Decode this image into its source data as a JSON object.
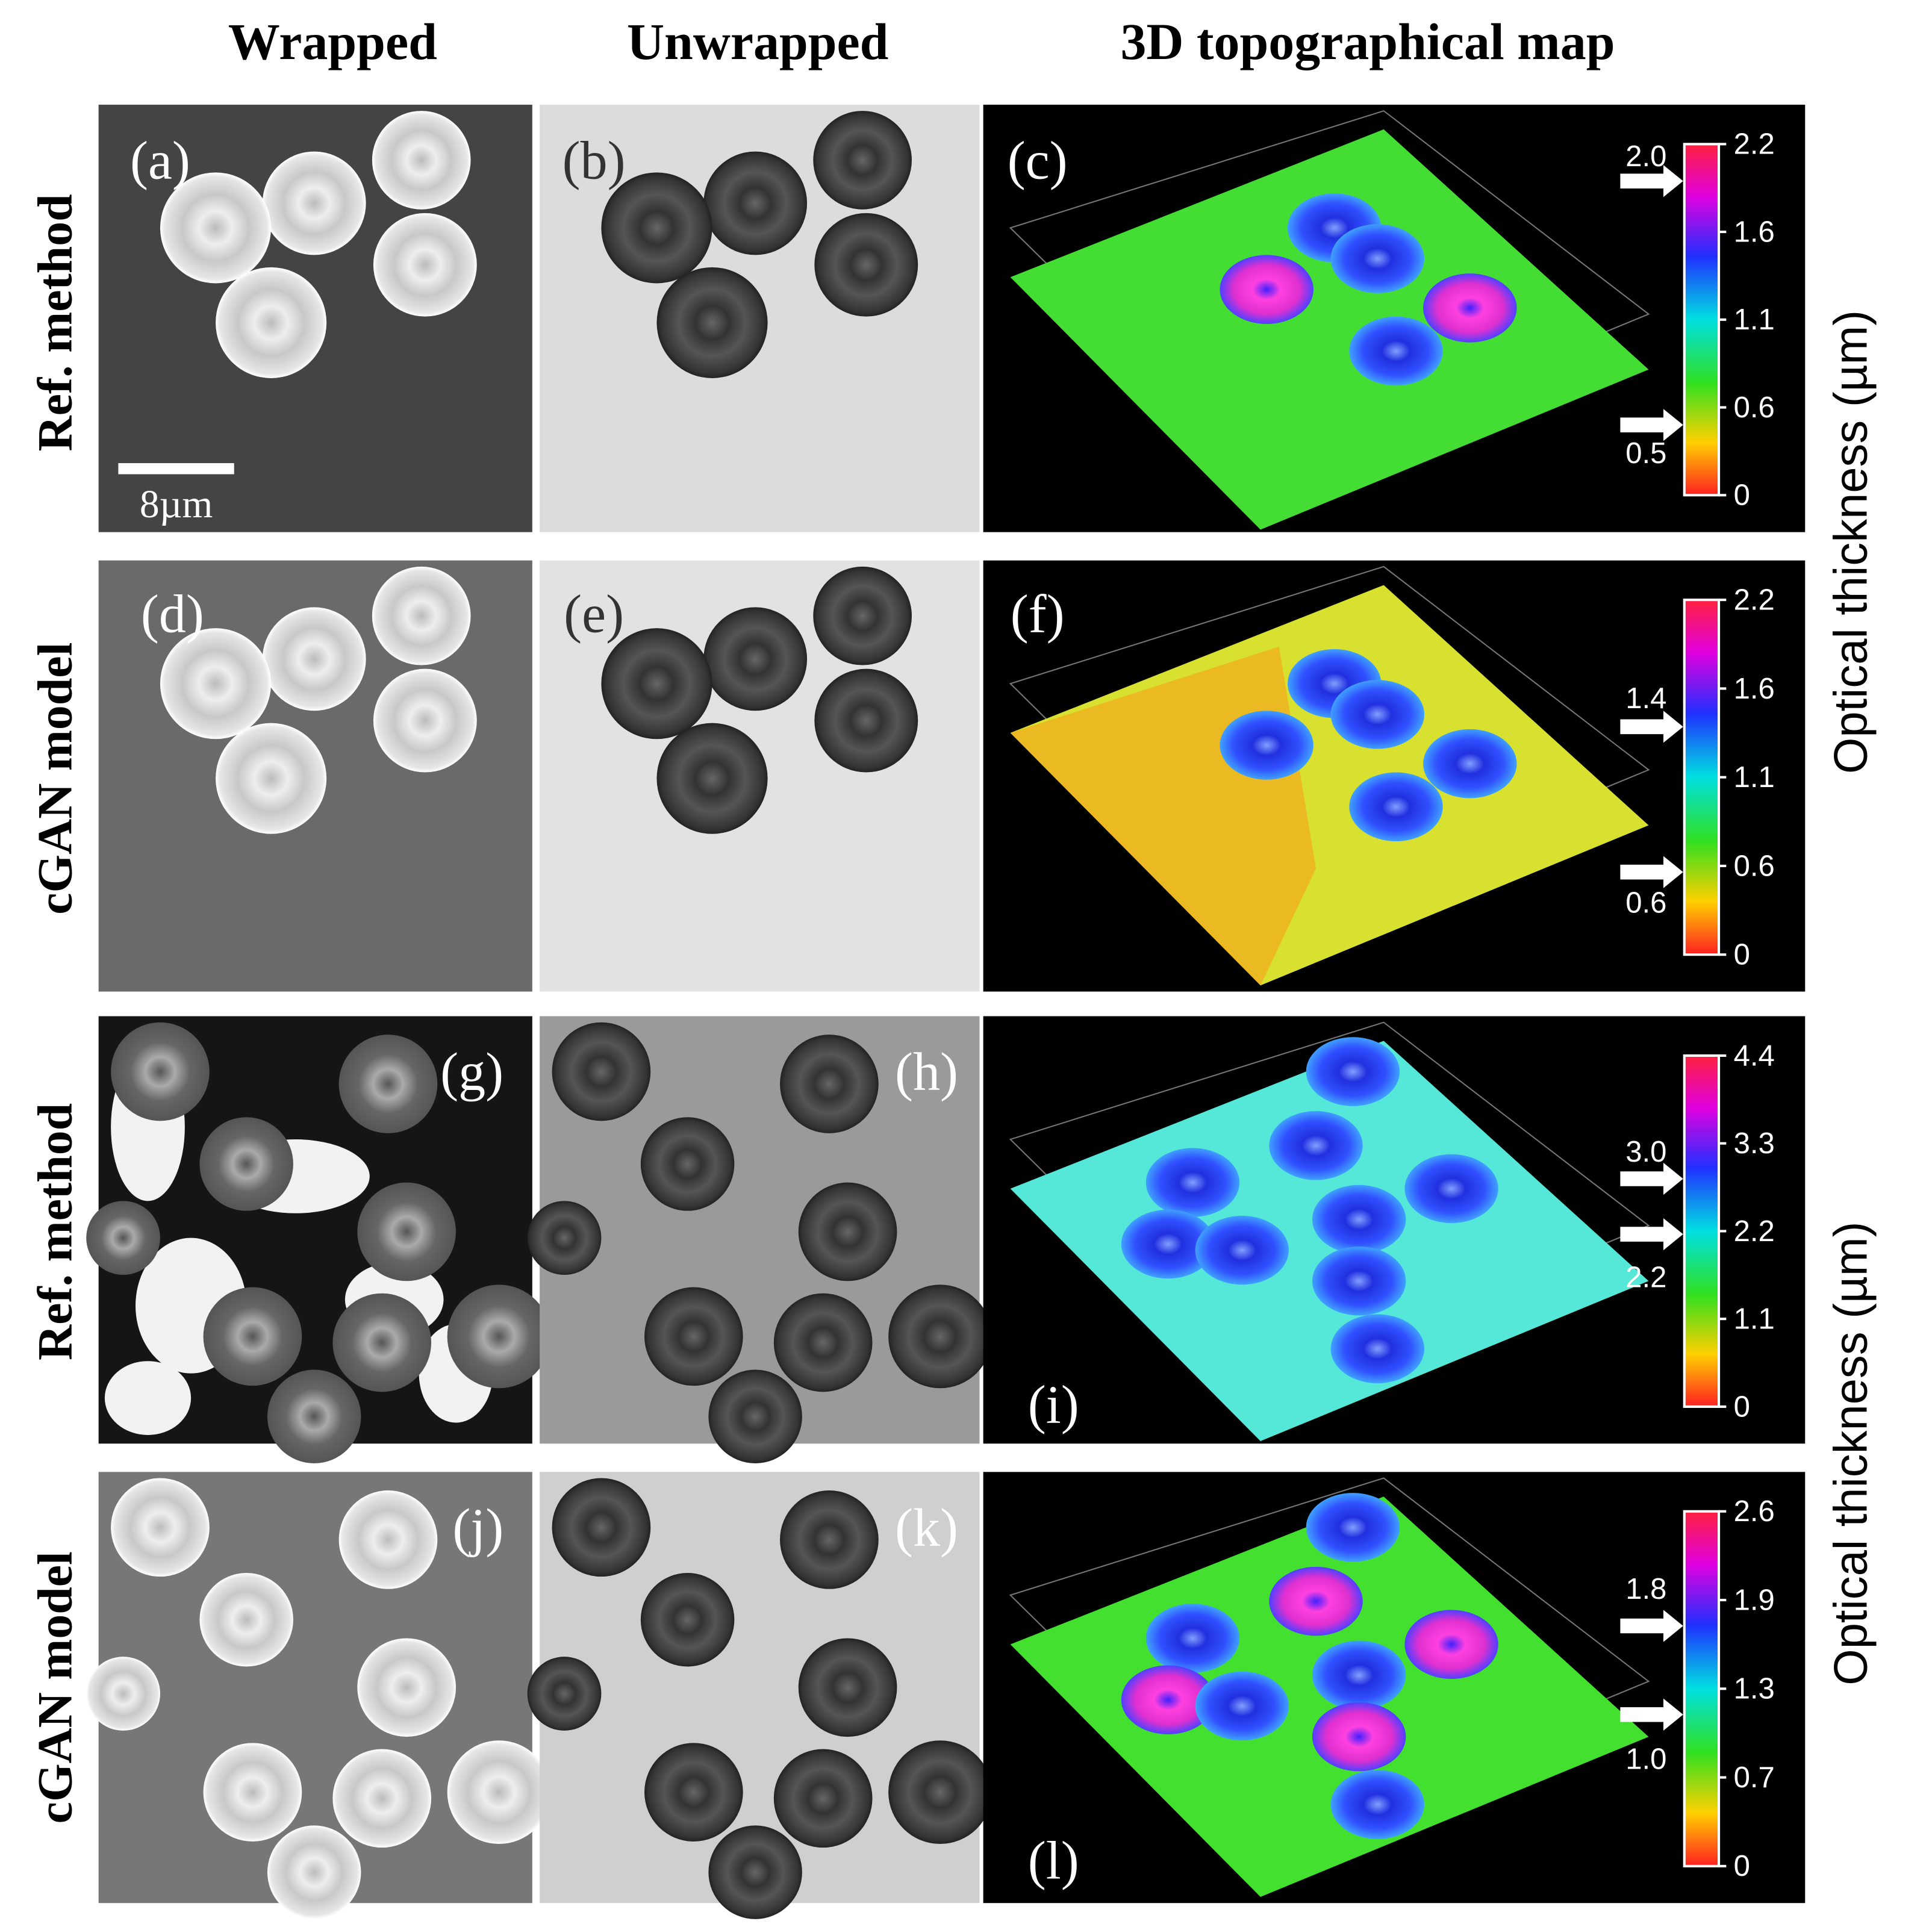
{
  "headers": [
    "Wrapped",
    "Unwrapped",
    "3D topographical map"
  ],
  "row_labels": [
    "Ref. method",
    "cGAN model",
    "Ref. method",
    "cGAN model"
  ],
  "panels": [
    "(a)",
    "(b)",
    "(c)",
    "(d)",
    "(e)",
    "(f)",
    "(g)",
    "(h)",
    "(i)",
    "(j)",
    "(k)",
    "(l)"
  ],
  "scale_bar": "8µm",
  "colorbars": [
    {
      "ticks": [
        "2.2",
        "1.6",
        "1.1",
        "0.6",
        "0"
      ],
      "markers": [
        "2.0",
        "0.5"
      ]
    },
    {
      "ticks": [
        "2.2",
        "1.6",
        "1.1",
        "0.6",
        "0"
      ],
      "markers": [
        "1.4",
        "0.6"
      ]
    },
    {
      "ticks": [
        "4.4",
        "3.3",
        "2.2",
        "1.1",
        "0"
      ],
      "markers": [
        "3.0",
        "2.2"
      ]
    },
    {
      "ticks": [
        "2.6",
        "1.9",
        "1.3",
        "0.7",
        "0"
      ],
      "markers": [
        "1.8",
        "1.0"
      ]
    }
  ],
  "colorbar_titles": [
    "Optical thickness (µm)",
    "Optical thickness (µm)"
  ]
}
